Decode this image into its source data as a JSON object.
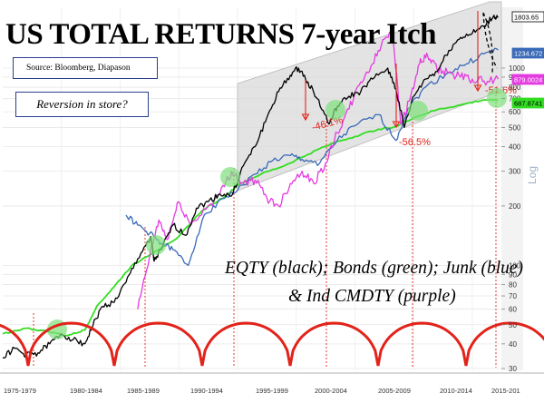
{
  "title": "US TOTAL RETURNS 7-year Itch",
  "source": "Source: Bloomberg, Diapason",
  "callout": "Reversion in store?",
  "legend_line1": "EQTY (black); Bonds (green); Junk (blue)",
  "legend_line2": "& Ind CMDTY (purple)",
  "axis_scale_label": "Log",
  "colors": {
    "equity": "#000000",
    "bonds": "#33dd22",
    "junk": "#3a6ab8",
    "commodity": "#e43be0",
    "cycle": "#e2231a",
    "band": "#d9d9d9",
    "drawdown": "#e2231a",
    "marker": "#7ee07a"
  },
  "chart_data": {
    "type": "line",
    "title": "US TOTAL RETURNS 7-year Itch",
    "x_periods": [
      "1975-1979",
      "1980-1984",
      "1985-1989",
      "1990-1994",
      "1995-1999",
      "2000-2004",
      "2005-2009",
      "2010-2014",
      "2015-201"
    ],
    "y_scale": "log",
    "y_ticks": [
      30,
      40,
      50,
      60,
      70,
      80,
      90,
      100,
      200,
      300,
      400,
      500,
      600,
      700,
      800,
      900,
      1000
    ],
    "end_value_labels": [
      {
        "series": "EQTY",
        "text": "1803.65"
      },
      {
        "series": "Junk",
        "text": "1234.672"
      },
      {
        "series": "Ind CMDTY",
        "text": "879.0024"
      },
      {
        "series": "Bonds",
        "text": "687.8741"
      }
    ],
    "drawdown_labels": [
      "-46.1%",
      "-56.5%",
      "-51.6%"
    ],
    "series": [
      {
        "name": "EQTY",
        "points": [
          [
            1975.0,
            34
          ],
          [
            1976.0,
            38
          ],
          [
            1977.0,
            35
          ],
          [
            1978.0,
            36
          ],
          [
            1979.0,
            40
          ],
          [
            1980.0,
            45
          ],
          [
            1981.0,
            42
          ],
          [
            1982.0,
            40
          ],
          [
            1982.7,
            50
          ],
          [
            1983.5,
            62
          ],
          [
            1984.5,
            65
          ],
          [
            1985.5,
            82
          ],
          [
            1986.5,
            108
          ],
          [
            1987.6,
            140
          ],
          [
            1987.9,
            105
          ],
          [
            1988.5,
            120
          ],
          [
            1989.5,
            160
          ],
          [
            1990.6,
            142
          ],
          [
            1991.5,
            195
          ],
          [
            1992.5,
            210
          ],
          [
            1993.5,
            230
          ],
          [
            1994.5,
            225
          ],
          [
            1995.5,
            320
          ],
          [
            1996.5,
            400
          ],
          [
            1997.5,
            560
          ],
          [
            1998.5,
            760
          ],
          [
            1999.5,
            920
          ],
          [
            2000.2,
            1000
          ],
          [
            2001.0,
            850
          ],
          [
            2001.8,
            700
          ],
          [
            2002.8,
            520
          ],
          [
            2003.5,
            640
          ],
          [
            2004.5,
            720
          ],
          [
            2005.5,
            760
          ],
          [
            2006.5,
            880
          ],
          [
            2007.8,
            1000
          ],
          [
            2008.5,
            780
          ],
          [
            2009.2,
            500
          ],
          [
            2010.0,
            720
          ],
          [
            2011.0,
            880
          ],
          [
            2012.0,
            960
          ],
          [
            2013.0,
            1230
          ],
          [
            2014.0,
            1430
          ],
          [
            2015.0,
            1500
          ],
          [
            2016.0,
            1620
          ],
          [
            2016.8,
            1830
          ],
          [
            2017.2,
            1804
          ]
        ]
      },
      {
        "name": "Bonds",
        "points": [
          [
            1975.0,
            45
          ],
          [
            1977.0,
            48
          ],
          [
            1979.0,
            46
          ],
          [
            1980.5,
            44
          ],
          [
            1982.0,
            47
          ],
          [
            1983.0,
            62
          ],
          [
            1984.5,
            78
          ],
          [
            1986.0,
            100
          ],
          [
            1988.0,
            118
          ],
          [
            1990.0,
            140
          ],
          [
            1992.0,
            190
          ],
          [
            1994.0,
            225
          ],
          [
            1995.0,
            255
          ],
          [
            1997.0,
            290
          ],
          [
            1999.0,
            320
          ],
          [
            2001.0,
            365
          ],
          [
            2003.0,
            415
          ],
          [
            2005.0,
            450
          ],
          [
            2007.0,
            490
          ],
          [
            2008.5,
            505
          ],
          [
            2010.0,
            560
          ],
          [
            2012.0,
            615
          ],
          [
            2014.0,
            650
          ],
          [
            2016.0,
            690
          ],
          [
            2017.2,
            688
          ]
        ]
      },
      {
        "name": "Junk",
        "points": [
          [
            1985.5,
            180
          ],
          [
            1986.5,
            160
          ],
          [
            1987.5,
            145
          ],
          [
            1988.5,
            130
          ],
          [
            1989.5,
            120
          ],
          [
            1990.8,
            100
          ],
          [
            1992.0,
            170
          ],
          [
            1993.5,
            215
          ],
          [
            1995.0,
            240
          ],
          [
            1996.5,
            290
          ],
          [
            1998.0,
            340
          ],
          [
            1999.5,
            360
          ],
          [
            2000.5,
            345
          ],
          [
            2002.0,
            330
          ],
          [
            2003.5,
            430
          ],
          [
            2005.0,
            510
          ],
          [
            2007.0,
            580
          ],
          [
            2008.5,
            430
          ],
          [
            2009.5,
            620
          ],
          [
            2011.0,
            800
          ],
          [
            2013.0,
            950
          ],
          [
            2014.5,
            1050
          ],
          [
            2016.0,
            1180
          ],
          [
            2017.2,
            1235
          ]
        ]
      },
      {
        "name": "Ind CMDTY",
        "points": [
          [
            1986.5,
            60
          ],
          [
            1987.5,
            110
          ],
          [
            1988.3,
            170
          ],
          [
            1989.0,
            135
          ],
          [
            1990.0,
            210
          ],
          [
            1991.0,
            160
          ],
          [
            1992.5,
            200
          ],
          [
            1993.5,
            230
          ],
          [
            1994.5,
            300
          ],
          [
            1995.5,
            260
          ],
          [
            1996.5,
            270
          ],
          [
            1997.5,
            220
          ],
          [
            1998.5,
            200
          ],
          [
            1999.5,
            260
          ],
          [
            2000.5,
            300
          ],
          [
            2001.5,
            260
          ],
          [
            2002.5,
            330
          ],
          [
            2003.5,
            470
          ],
          [
            2004.5,
            620
          ],
          [
            2005.5,
            850
          ],
          [
            2006.5,
            1050
          ],
          [
            2007.5,
            1400
          ],
          [
            2008.2,
            1600
          ],
          [
            2008.9,
            520
          ],
          [
            2009.7,
            700
          ],
          [
            2010.5,
            1050
          ],
          [
            2011.2,
            1150
          ],
          [
            2012.0,
            980
          ],
          [
            2013.0,
            950
          ],
          [
            2014.0,
            900
          ],
          [
            2015.0,
            880
          ],
          [
            2016.0,
            860
          ],
          [
            2017.2,
            879
          ]
        ]
      }
    ]
  }
}
